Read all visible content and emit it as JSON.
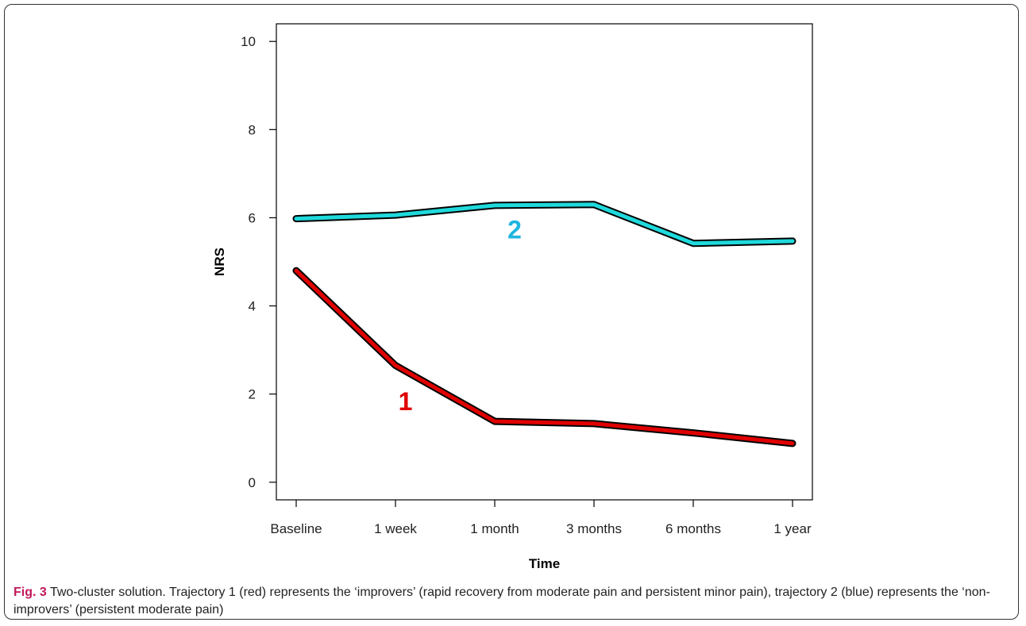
{
  "chart_data": {
    "type": "line",
    "categories": [
      "Baseline",
      "1 week",
      "1 month",
      "3 months",
      "6 months",
      "1 year"
    ],
    "series": [
      {
        "name": "1",
        "color": "#e00000",
        "values": [
          4.8,
          2.65,
          1.38,
          1.33,
          1.12,
          0.88
        ]
      },
      {
        "name": "2",
        "color": "#1fd9dc",
        "values": [
          5.98,
          6.06,
          6.28,
          6.3,
          5.42,
          5.47
        ]
      }
    ],
    "title": "",
    "xlabel": "Time",
    "ylabel": "NRS",
    "ylim": [
      -0.4,
      10.4
    ],
    "yticks": [
      0,
      2,
      4,
      6,
      8,
      10
    ],
    "grid": false,
    "annotations": [
      {
        "text": "1",
        "color": "#e00000",
        "x": 1.1,
        "y": 1.85
      },
      {
        "text": "2",
        "color": "#1fb5e0",
        "x": 2.2,
        "y": 5.75
      }
    ]
  },
  "caption": {
    "label_prefix": "Fig.",
    "label_number": "3",
    "text": " Two-cluster solution. Trajectory 1 (red) represents the ‘improvers’ (rapid recovery from moderate pain and persistent minor pain), trajectory 2 (blue) represents the ‘non-improvers’ (persistent moderate pain)"
  }
}
